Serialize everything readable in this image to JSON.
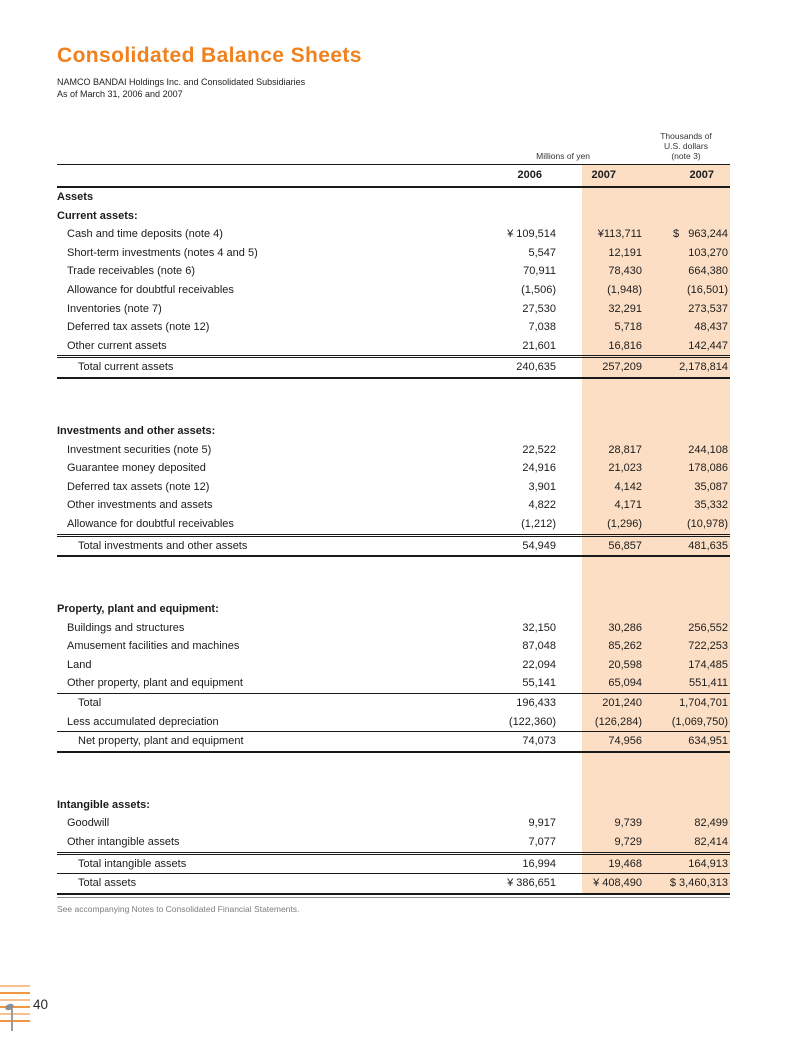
{
  "header": {
    "title": "Consolidated Balance Sheets",
    "subtitle_line1": "NAMCO BANDAI Holdings Inc. and Consolidated Subsidiaries",
    "subtitle_line2": "As of March 31, 2006 and 2007"
  },
  "table": {
    "unit_label_yen": "Millions of yen",
    "unit_label_usd": "Thousands of\nU.S. dollars\n(note 3)",
    "year_headers": [
      "2006",
      "2007",
      "2007"
    ],
    "rows": [
      {
        "label": "Assets",
        "type": "section"
      },
      {
        "label": "Current assets:",
        "type": "section"
      },
      {
        "label": "Cash and time deposits (note 4)",
        "type": "item",
        "vals": [
          "¥ 109,514",
          "¥113,711",
          "$   963,244"
        ]
      },
      {
        "label": "Short-term investments (notes 4 and 5)",
        "type": "item",
        "vals": [
          "5,547",
          "12,191",
          "103,270"
        ]
      },
      {
        "label": "Trade receivables (note 6)",
        "type": "item",
        "vals": [
          "70,911",
          "78,430",
          "664,380"
        ]
      },
      {
        "label": "Allowance for doubtful receivables",
        "type": "item",
        "vals": [
          "(1,506)",
          "(1,948)",
          "(16,501)"
        ]
      },
      {
        "label": "Inventories (note 7)",
        "type": "item",
        "vals": [
          "27,530",
          "32,291",
          "273,537"
        ]
      },
      {
        "label": "Deferred tax assets (note 12)",
        "type": "item",
        "vals": [
          "7,038",
          "5,718",
          "48,437"
        ]
      },
      {
        "label": "Other current assets",
        "type": "item",
        "vals": [
          "21,601",
          "16,816",
          "142,447"
        ]
      },
      {
        "label": "Total current assets",
        "type": "total",
        "rules": "rtd rb",
        "vals": [
          "240,635",
          "257,209",
          "2,178,814"
        ]
      },
      {
        "label": "Investments and other assets:",
        "type": "section",
        "gap": true
      },
      {
        "label": "Investment securities (note 5)",
        "type": "item",
        "vals": [
          "22,522",
          "28,817",
          "244,108"
        ]
      },
      {
        "label": "Guarantee money deposited",
        "type": "item",
        "vals": [
          "24,916",
          "21,023",
          "178,086"
        ]
      },
      {
        "label": "Deferred tax assets (note 12)",
        "type": "item",
        "vals": [
          "3,901",
          "4,142",
          "35,087"
        ]
      },
      {
        "label": "Other investments and assets",
        "type": "item",
        "vals": [
          "4,822",
          "4,171",
          "35,332"
        ]
      },
      {
        "label": "Allowance for doubtful receivables",
        "type": "item",
        "vals": [
          "(1,212)",
          "(1,296)",
          "(10,978)"
        ]
      },
      {
        "label": "Total investments and other assets",
        "type": "total",
        "rules": "rtd rb",
        "vals": [
          "54,949",
          "56,857",
          "481,635"
        ]
      },
      {
        "label": "Property, plant and equipment:",
        "type": "section",
        "gap": true
      },
      {
        "label": "Buildings and structures",
        "type": "item",
        "vals": [
          "32,150",
          "30,286",
          "256,552"
        ]
      },
      {
        "label": "Amusement facilities and machines",
        "type": "item",
        "vals": [
          "87,048",
          "85,262",
          "722,253"
        ]
      },
      {
        "label": "Land",
        "type": "item",
        "vals": [
          "22,094",
          "20,598",
          "174,485"
        ]
      },
      {
        "label": "Other property, plant and equipment",
        "type": "item",
        "vals": [
          "55,141",
          "65,094",
          "551,411"
        ]
      },
      {
        "label": "Total",
        "type": "total",
        "rules": "rt",
        "vals": [
          "196,433",
          "201,240",
          "1,704,701"
        ]
      },
      {
        "label": "Less accumulated depreciation",
        "type": "item",
        "vals": [
          "(122,360)",
          "(126,284)",
          "(1,069,750)"
        ]
      },
      {
        "label": "Net property, plant and equipment",
        "type": "total",
        "rules": "rt rb",
        "vals": [
          "74,073",
          "74,956",
          "634,951"
        ]
      },
      {
        "label": "Intangible assets:",
        "type": "section",
        "gap": true
      },
      {
        "label": "Goodwill",
        "type": "item",
        "vals": [
          "9,917",
          "9,739",
          "82,499"
        ]
      },
      {
        "label": "Other intangible assets",
        "type": "item",
        "vals": [
          "7,077",
          "9,729",
          "82,414"
        ]
      },
      {
        "label": "Total intangible assets",
        "type": "total",
        "rules": "rtd",
        "vals": [
          "16,994",
          "19,468",
          "164,913"
        ]
      },
      {
        "label": "Total assets",
        "type": "total",
        "rules": "rt rb",
        "grand": true,
        "vals": [
          "¥ 386,651",
          "¥ 408,490",
          "$ 3,460,313"
        ]
      }
    ],
    "footnote": "See accompanying Notes to Consolidated Financial Statements."
  },
  "page_footer": {
    "page_number": "40"
  },
  "colors": {
    "accent_orange": "#F0811F",
    "band_peach": "#FBDEC4"
  }
}
